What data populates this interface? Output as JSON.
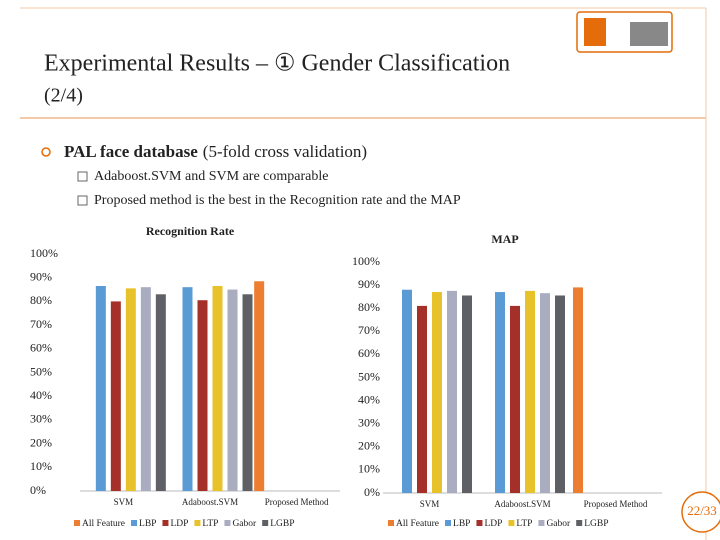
{
  "slide": {
    "title": "Experimental Results – ① Gender Classification",
    "subtitle": "(2/4)",
    "bullet_bold": "PAL face database",
    "bullet_rest": "(5-fold cross validation)",
    "subbullets": [
      "Adaboost.SVM and SVM are comparable",
      "Proposed method is the best in the Recognition rate and the MAP"
    ],
    "page": "22/33"
  },
  "chart_data": [
    {
      "type": "bar",
      "title": "Recognition Rate",
      "categories": [
        "SVM",
        "Adaboost.SVM",
        "Proposed Method"
      ],
      "series": [
        {
          "name": "All Feature",
          "color": "#ed7d31",
          "values": [
            null,
            null,
            88.5
          ]
        },
        {
          "name": "LBP",
          "color": "#5b9bd5",
          "values": [
            86.5,
            86,
            null
          ]
        },
        {
          "name": "LDP",
          "color": "#a5302a",
          "values": [
            80,
            80.5,
            null
          ]
        },
        {
          "name": "LTP",
          "color": "#e8c22a",
          "values": [
            85.5,
            86.5,
            null
          ]
        },
        {
          "name": "Gabor",
          "color": "#a9adbf",
          "values": [
            86,
            85,
            null
          ]
        },
        {
          "name": "LGBP",
          "color": "#5f6066",
          "values": [
            83,
            83,
            null
          ]
        }
      ],
      "ylim": [
        0,
        100
      ],
      "yticks": [
        {
          "value": 0,
          "label": "0%"
        },
        {
          "value": 10,
          "label": "10%"
        },
        {
          "value": 20,
          "label": "20%"
        },
        {
          "value": 30,
          "label": "30%"
        },
        {
          "value": 40,
          "label": "40%"
        },
        {
          "value": 50,
          "label": "50%"
        },
        {
          "value": 60,
          "label": "60%"
        },
        {
          "value": 70,
          "label": "70%"
        },
        {
          "value": 80,
          "label": "80%"
        },
        {
          "value": 90,
          "label": "90%"
        },
        {
          "value": 100,
          "label": "100%"
        }
      ],
      "grid": false,
      "legend": "bottom"
    },
    {
      "type": "bar",
      "title": "MAP",
      "categories": [
        "SVM",
        "Adaboost.SVM",
        "Proposed Method"
      ],
      "series": [
        {
          "name": "All Feature",
          "color": "#ed7d31",
          "values": [
            null,
            null,
            89
          ]
        },
        {
          "name": "LBP",
          "color": "#5b9bd5",
          "values": [
            88,
            87,
            null
          ]
        },
        {
          "name": "LDP",
          "color": "#a5302a",
          "values": [
            81,
            81,
            null
          ]
        },
        {
          "name": "LTP",
          "color": "#e8c22a",
          "values": [
            87,
            87.5,
            null
          ]
        },
        {
          "name": "Gabor",
          "color": "#a9adbf",
          "values": [
            87.5,
            86.5,
            null
          ]
        },
        {
          "name": "LGBP",
          "color": "#5f6066",
          "values": [
            85.5,
            85.5,
            null
          ]
        }
      ],
      "ylim": [
        0,
        100
      ],
      "yticks": [
        {
          "value": 0,
          "label": "0%"
        },
        {
          "value": 10,
          "label": "10%"
        },
        {
          "value": 20,
          "label": "20%"
        },
        {
          "value": 30,
          "label": "30%"
        },
        {
          "value": 40,
          "label": "40%"
        },
        {
          "value": 50,
          "label": "50%"
        },
        {
          "value": 60,
          "label": "60%"
        },
        {
          "value": 70,
          "label": "70%"
        },
        {
          "value": 80,
          "label": "80%"
        },
        {
          "value": 90,
          "label": "90%"
        },
        {
          "value": 100,
          "label": "100%"
        }
      ],
      "grid": false,
      "legend": "bottom"
    }
  ]
}
